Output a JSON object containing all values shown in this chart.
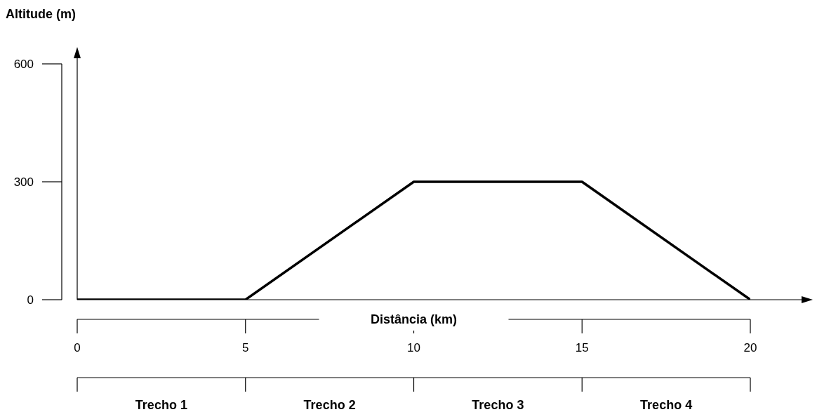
{
  "chart_data": {
    "type": "line",
    "ylabel": "Altitude (m)",
    "xlabel": "Distância (km)",
    "x": [
      0,
      5,
      10,
      15,
      20
    ],
    "values": [
      0,
      0,
      300,
      300,
      0
    ],
    "color": "#000000",
    "marker": "none",
    "line_style": "solid",
    "grid": false,
    "xlim": [
      0,
      20
    ],
    "ylim": [
      0,
      600
    ],
    "xticks": [
      0,
      5,
      10,
      15,
      20
    ],
    "yticks": [
      0,
      300,
      600
    ],
    "annotations": [
      "Trecho 1",
      "Trecho 2",
      "Trecho 3",
      "Trecho 4"
    ]
  }
}
